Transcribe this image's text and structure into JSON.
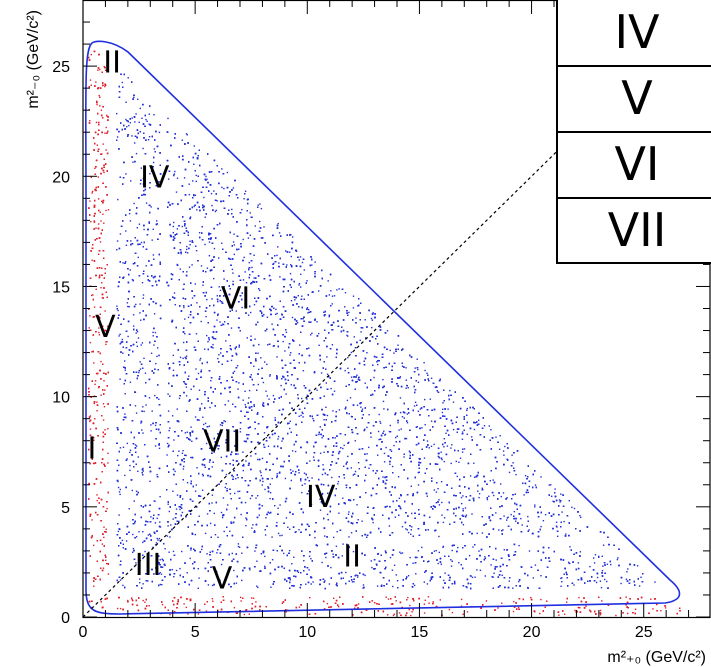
{
  "chart_data": {
    "type": "scatter",
    "xlabel": "m²₊₀ (GeV/c²)",
    "ylabel": "m²₋₀ (GeV/c²)",
    "xlim": [
      0,
      28
    ],
    "ylim": [
      0,
      28
    ],
    "x_ticks": [
      "0",
      "5",
      "10",
      "15",
      "20",
      "25"
    ],
    "y_ticks": [
      "0",
      "5",
      "10",
      "15",
      "20",
      "25"
    ],
    "grid": false,
    "diagonal_reference_line": true,
    "boundary_color": "#1f2fe0",
    "region_colors": {
      "I": "#e0212b",
      "II": "#2331d6",
      "III": "#22dd22",
      "IV": "#e22fe3",
      "V": "#ffff22",
      "VI": "#23e6e6",
      "VII": "#c8b816"
    },
    "region_labels": [
      {
        "text": "II",
        "x": 1.3,
        "y": 24.7
      },
      {
        "text": "IV",
        "x": 3.2,
        "y": 19.5
      },
      {
        "text": "VI",
        "x": 6.8,
        "y": 14.0
      },
      {
        "text": "V",
        "x": 1.0,
        "y": 12.7
      },
      {
        "text": "I",
        "x": 0.4,
        "y": 7.2
      },
      {
        "text": "VII",
        "x": 6.2,
        "y": 7.5
      },
      {
        "text": "IV",
        "x": 10.6,
        "y": 5.0
      },
      {
        "text": "III",
        "x": 2.9,
        "y": 1.9
      },
      {
        "text": "V",
        "x": 6.2,
        "y": 1.3
      },
      {
        "text": "II",
        "x": 12.0,
        "y": 2.3
      }
    ],
    "legend_entries": [
      "IV",
      "V",
      "VI",
      "VII"
    ],
    "legend_position": "top-right"
  }
}
